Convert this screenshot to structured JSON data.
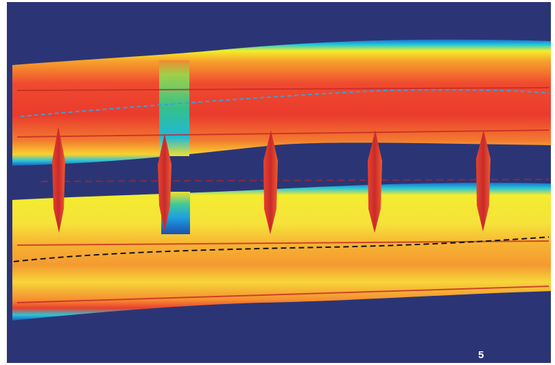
{
  "figure_number": "5"
}
